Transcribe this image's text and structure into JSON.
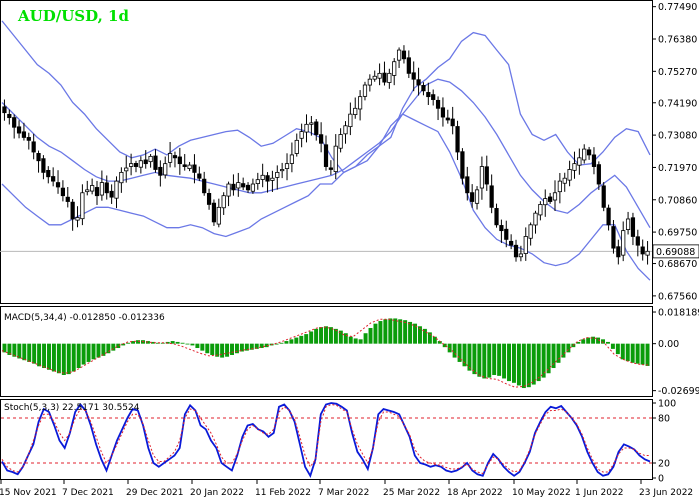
{
  "header": {
    "title": "AUD/USD, 1d",
    "title_color": "#00e000"
  },
  "current_price_label": "0.69088",
  "x_axis_labels": [
    "15 Nov 2021",
    "7 Dec 2021",
    "29 Dec 2021",
    "20 Jan 2022",
    "11 Feb 2022",
    "7 Mar 2022",
    "25 Mar 2022",
    "18 Apr 2022",
    "10 May 2022",
    "1 Jun 2022",
    "23 Jun 2022"
  ],
  "chart_data": [
    {
      "type": "candlestick",
      "panel": "price",
      "title": "AUD/USD, 1d",
      "y_ticks": [
        "0.77490",
        "0.76380",
        "0.75270",
        "0.74190",
        "0.73080",
        "0.71970",
        "0.70860",
        "0.69750",
        "0.68670",
        "0.67560"
      ],
      "ylim": [
        0.6735,
        0.7765
      ],
      "last_price": 0.69088,
      "approx_closes": [
        0.7385,
        0.7368,
        0.7335,
        0.7315,
        0.73,
        0.729,
        0.725,
        0.722,
        0.718,
        0.7165,
        0.715,
        0.713,
        0.71,
        0.708,
        0.702,
        0.7025,
        0.711,
        0.712,
        0.7135,
        0.71,
        0.7145,
        0.711,
        0.7095,
        0.715,
        0.718,
        0.7195,
        0.721,
        0.72,
        0.722,
        0.721,
        0.7235,
        0.719,
        0.717,
        0.721,
        0.7245,
        0.723,
        0.721,
        0.72,
        0.7205,
        0.718,
        0.716,
        0.711,
        0.707,
        0.701,
        0.706,
        0.71,
        0.714,
        0.712,
        0.7145,
        0.713,
        0.712,
        0.714,
        0.7155,
        0.717,
        0.715,
        0.716,
        0.718,
        0.719,
        0.721,
        0.724,
        0.729,
        0.732,
        0.7345,
        0.735,
        0.731,
        0.728,
        0.72,
        0.719,
        0.727,
        0.731,
        0.734,
        0.738,
        0.74,
        0.744,
        0.748,
        0.75,
        0.751,
        0.752,
        0.749,
        0.752,
        0.756,
        0.76,
        0.757,
        0.752,
        0.75,
        0.748,
        0.746,
        0.744,
        0.743,
        0.74,
        0.737,
        0.736,
        0.734,
        0.725,
        0.716,
        0.711,
        0.708,
        0.712,
        0.72,
        0.714,
        0.706,
        0.7,
        0.698,
        0.695,
        0.693,
        0.689,
        0.69,
        0.696,
        0.7,
        0.704,
        0.707,
        0.709,
        0.708,
        0.711,
        0.715,
        0.716,
        0.719,
        0.721,
        0.723,
        0.726,
        0.724,
        0.72,
        0.714,
        0.706,
        0.7,
        0.692,
        0.689,
        0.698,
        0.702,
        0.696,
        0.693,
        0.69,
        0.6909
      ]
    },
    {
      "type": "line",
      "panel": "price",
      "series": [
        {
          "name": "Bollinger upper",
          "color": "#6b78e6",
          "values": [
            0.77,
            0.765,
            0.76,
            0.755,
            0.752,
            0.748,
            0.742,
            0.738,
            0.733,
            0.729,
            0.725,
            0.723,
            0.724,
            0.726,
            0.724,
            0.727,
            0.729,
            0.73,
            0.731,
            0.732,
            0.7325,
            0.73,
            0.727,
            0.728,
            0.7305,
            0.733,
            0.732,
            0.73,
            0.723,
            0.718,
            0.72,
            0.724,
            0.727,
            0.73,
            0.74,
            0.747,
            0.75,
            0.754,
            0.757,
            0.763,
            0.766,
            0.765,
            0.76,
            0.755,
            0.738,
            0.731,
            0.729,
            0.731,
            0.725,
            0.7205,
            0.721,
            0.725,
            0.73,
            0.733,
            0.732,
            0.724
          ]
        },
        {
          "name": "Bollinger middle",
          "color": "#6b78e6",
          "values": [
            0.742,
            0.738,
            0.734,
            0.73,
            0.727,
            0.725,
            0.722,
            0.719,
            0.7165,
            0.715,
            0.715,
            0.716,
            0.717,
            0.718,
            0.717,
            0.7165,
            0.716,
            0.715,
            0.714,
            0.713,
            0.712,
            0.711,
            0.711,
            0.712,
            0.713,
            0.714,
            0.715,
            0.716,
            0.717,
            0.719,
            0.722,
            0.725,
            0.728,
            0.732,
            0.738,
            0.743,
            0.748,
            0.75,
            0.749,
            0.746,
            0.742,
            0.737,
            0.731,
            0.724,
            0.717,
            0.712,
            0.708,
            0.705,
            0.704,
            0.707,
            0.711,
            0.714,
            0.717,
            0.713,
            0.706,
            0.699
          ]
        },
        {
          "name": "Bollinger lower",
          "color": "#6b78e6",
          "values": [
            0.714,
            0.71,
            0.706,
            0.703,
            0.7,
            0.7,
            0.702,
            0.704,
            0.706,
            0.706,
            0.705,
            0.704,
            0.703,
            0.701,
            0.699,
            0.699,
            0.7,
            0.699,
            0.697,
            0.696,
            0.6975,
            0.699,
            0.702,
            0.704,
            0.706,
            0.708,
            0.71,
            0.714,
            0.714,
            0.718,
            0.72,
            0.722,
            0.727,
            0.734,
            0.738,
            0.736,
            0.734,
            0.732,
            0.725,
            0.716,
            0.705,
            0.699,
            0.695,
            0.693,
            0.692,
            0.69,
            0.687,
            0.686,
            0.687,
            0.69,
            0.695,
            0.7,
            0.7,
            0.691,
            0.685,
            0.681
          ]
        }
      ]
    },
    {
      "type": "bar",
      "panel": "macd",
      "title": "MACD(5,34,4) -0.012850 -0.012336",
      "y_ticks": [
        "0.018189",
        "0.00",
        "-0.026994"
      ],
      "ylim": [
        -0.0295,
        0.0205
      ],
      "bar_color": "#0a9c0a",
      "signal_color": "#e0202c",
      "histogram": [
        -0.005,
        -0.0065,
        -0.0075,
        -0.0085,
        -0.0095,
        -0.0105,
        -0.0115,
        -0.013,
        -0.014,
        -0.015,
        -0.016,
        -0.017,
        -0.018,
        -0.0175,
        -0.016,
        -0.014,
        -0.012,
        -0.0105,
        -0.009,
        -0.008,
        -0.007,
        -0.0055,
        -0.004,
        -0.0025,
        -0.001,
        0.0005,
        0.0015,
        0.002,
        0.002,
        0.0015,
        0.001,
        0.0005,
        0.0005,
        0.001,
        0.0015,
        0.001,
        0.0005,
        0.0,
        -0.001,
        -0.0025,
        -0.004,
        -0.0055,
        -0.0065,
        -0.0075,
        -0.008,
        -0.0075,
        -0.0065,
        -0.0055,
        -0.0045,
        -0.004,
        -0.0035,
        -0.003,
        -0.0025,
        -0.002,
        -0.001,
        -0.0005,
        0.0005,
        0.0015,
        0.0025,
        0.0035,
        0.0045,
        0.0055,
        0.007,
        0.0085,
        0.0095,
        0.01,
        0.0095,
        0.0085,
        0.0075,
        0.006,
        0.004,
        0.003,
        0.0025,
        0.006,
        0.009,
        0.0115,
        0.013,
        0.014,
        0.0145,
        0.0145,
        0.014,
        0.0135,
        0.0125,
        0.0115,
        0.01,
        0.0085,
        0.0065,
        0.004,
        0.0015,
        -0.002,
        -0.005,
        -0.008,
        -0.0105,
        -0.013,
        -0.0155,
        -0.0175,
        -0.019,
        -0.02,
        -0.0195,
        -0.018,
        -0.0185,
        -0.02,
        -0.0215,
        -0.0225,
        -0.024,
        -0.0255,
        -0.025,
        -0.0235,
        -0.0215,
        -0.0195,
        -0.017,
        -0.014,
        -0.011,
        -0.008,
        -0.005,
        -0.002,
        0.001,
        0.0025,
        0.0035,
        0.004,
        0.0035,
        0.0025,
        0.001,
        -0.003,
        -0.006,
        -0.009,
        -0.01,
        -0.011,
        -0.0115,
        -0.012,
        -0.0128
      ],
      "signal": [
        -0.004,
        -0.006,
        -0.008,
        -0.01,
        -0.012,
        -0.014,
        -0.016,
        -0.017,
        -0.016,
        -0.013,
        -0.01,
        -0.007,
        -0.004,
        -0.001,
        0.001,
        0.0015,
        0.001,
        0.0005,
        0.0005,
        0.0,
        -0.0015,
        -0.0035,
        -0.0055,
        -0.007,
        -0.0065,
        -0.0055,
        -0.0045,
        -0.0035,
        -0.0028,
        -0.0018,
        -0.0005,
        0.001,
        0.003,
        0.005,
        0.007,
        0.009,
        0.0095,
        0.008,
        0.005,
        0.004,
        0.008,
        0.012,
        0.014,
        0.014,
        0.013,
        0.012,
        0.01,
        0.007,
        0.004,
        0.0,
        -0.004,
        -0.009,
        -0.014,
        -0.018,
        -0.02,
        -0.0205,
        -0.023,
        -0.025,
        -0.0245,
        -0.022,
        -0.018,
        -0.013,
        -0.008,
        -0.003,
        0.0015,
        0.0035,
        0.003,
        0.0,
        -0.006,
        -0.009,
        -0.011,
        -0.012,
        -0.0123
      ]
    },
    {
      "type": "line",
      "panel": "stochastic",
      "title": "Stoch(5,3,3) 22.5171 30.5524",
      "y_ticks": [
        "100",
        "80",
        "20",
        "0"
      ],
      "ylim": [
        0,
        100
      ],
      "levels": [
        80,
        20
      ],
      "series": [
        {
          "name": "%K",
          "color": "#0a1ad8",
          "values": [
            22,
            10,
            8,
            5,
            15,
            30,
            45,
            75,
            92,
            88,
            70,
            50,
            40,
            60,
            88,
            98,
            90,
            70,
            45,
            25,
            10,
            30,
            50,
            65,
            80,
            92,
            90,
            70,
            40,
            20,
            15,
            20,
            25,
            30,
            40,
            85,
            97,
            90,
            70,
            65,
            50,
            40,
            20,
            15,
            10,
            30,
            55,
            70,
            72,
            65,
            62,
            55,
            60,
            95,
            98,
            90,
            75,
            45,
            15,
            3,
            25,
            85,
            98,
            100,
            99,
            95,
            90,
            60,
            35,
            25,
            12,
            40,
            85,
            92,
            90,
            88,
            85,
            70,
            55,
            30,
            20,
            18,
            15,
            17,
            15,
            10,
            8,
            10,
            14,
            20,
            10,
            5,
            3,
            20,
            32,
            25,
            15,
            8,
            3,
            8,
            20,
            35,
            60,
            75,
            88,
            95,
            93,
            96,
            88,
            80,
            70,
            55,
            35,
            20,
            8,
            3,
            5,
            15,
            35,
            45,
            42,
            38,
            30,
            25,
            22
          ]
        },
        {
          "name": "%D",
          "color": "#e0202c",
          "values": [
            25,
            15,
            10,
            8,
            15,
            30,
            50,
            70,
            85,
            85,
            75,
            60,
            50,
            60,
            80,
            92,
            90,
            75,
            55,
            35,
            20,
            30,
            45,
            60,
            75,
            85,
            85,
            72,
            50,
            30,
            22,
            22,
            28,
            35,
            50,
            80,
            92,
            90,
            80,
            70,
            60,
            45,
            28,
            20,
            20,
            32,
            50,
            65,
            70,
            65,
            60,
            58,
            65,
            88,
            95,
            90,
            78,
            55,
            30,
            15,
            25,
            75,
            95,
            98,
            97,
            92,
            88,
            65,
            45,
            32,
            20,
            40,
            75,
            88,
            88,
            85,
            82,
            70,
            58,
            38,
            28,
            22,
            20,
            18,
            17,
            14,
            12,
            12,
            15,
            18,
            12,
            8,
            6,
            18,
            28,
            25,
            18,
            12,
            8,
            10,
            22,
            38,
            58,
            72,
            85,
            90,
            90,
            92,
            88,
            80,
            72,
            58,
            40,
            25,
            12,
            8,
            8,
            18,
            32,
            40,
            40,
            38,
            33,
            30,
            30
          ]
        }
      ]
    }
  ]
}
